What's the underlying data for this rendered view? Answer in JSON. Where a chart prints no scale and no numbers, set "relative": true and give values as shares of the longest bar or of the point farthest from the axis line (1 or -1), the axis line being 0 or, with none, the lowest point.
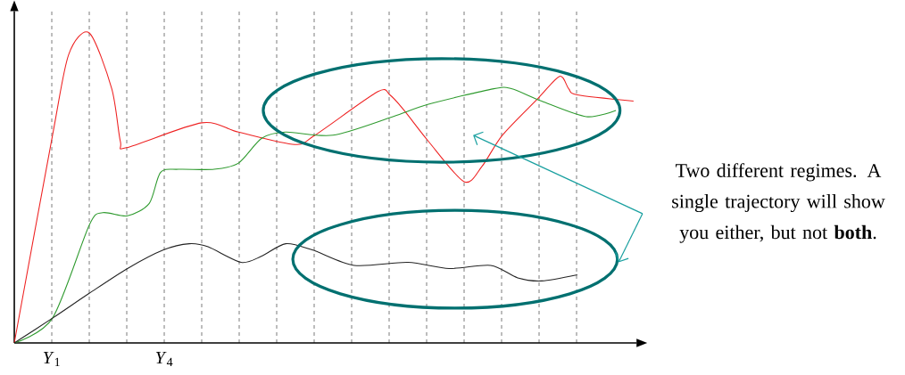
{
  "chart_data": {
    "type": "line",
    "relative": true,
    "xlim": [
      0,
      16.6
    ],
    "xticks": [
      {
        "value": 1,
        "label": "*Y*$_{1}$"
      },
      {
        "value": 2,
        "label": null
      },
      {
        "value": 3,
        "label": null
      },
      {
        "value": 4,
        "label": "*Y*$_{4}$"
      },
      {
        "value": 5,
        "label": null
      },
      {
        "value": 6,
        "label": null
      },
      {
        "value": 7,
        "label": null
      },
      {
        "value": 8,
        "label": null
      },
      {
        "value": 9,
        "label": null
      },
      {
        "value": 10,
        "label": null
      },
      {
        "value": 11,
        "label": null
      },
      {
        "value": 12,
        "label": null
      },
      {
        "value": 13,
        "label": null
      },
      {
        "value": 14,
        "label": null
      },
      {
        "value": 15,
        "label": null
      }
    ],
    "grid": "x",
    "series": [
      {
        "color": "#ee2222",
        "x": [
          0,
          1.02,
          1.45,
          2.0,
          2.6,
          2.83,
          3.0,
          5.0,
          5.98,
          7.48,
          8.02,
          9.69,
          10.02,
          10.4,
          11.05,
          12.0,
          12.48,
          13.02,
          13.98,
          14.55,
          14.79,
          15.02,
          16.52
        ],
        "values": [
          0,
          0.67,
          0.93,
          1.0,
          0.82,
          0.65,
          0.63,
          0.71,
          0.68,
          0.64,
          0.67,
          0.81,
          0.8,
          0.75,
          0.65,
          0.52,
          0.57,
          0.67,
          0.79,
          0.86,
          0.82,
          0.8,
          0.78
        ]
      },
      {
        "color": "#2e9a2e",
        "x": [
          0,
          1.02,
          2.0,
          2.36,
          3.02,
          3.6,
          3.9,
          4.38,
          5.33,
          5.98,
          6.6,
          7.24,
          8.5,
          10.1,
          11.05,
          12.79,
          13.26,
          14.07,
          15.26,
          16.05
        ],
        "values": [
          0,
          0.08,
          0.38,
          0.42,
          0.41,
          0.45,
          0.55,
          0.56,
          0.56,
          0.58,
          0.66,
          0.68,
          0.67,
          0.73,
          0.77,
          0.82,
          0.82,
          0.78,
          0.73,
          0.75
        ]
      },
      {
        "color": "#222222",
        "x": [
          0,
          1.02,
          2.0,
          3.02,
          3.98,
          4.67,
          5.17,
          6.05,
          6.6,
          7.24,
          7.95,
          9.07,
          10.5,
          11.6,
          12.71,
          13.43,
          14.07,
          15.02
        ],
        "values": [
          0,
          0.08,
          0.16,
          0.24,
          0.3,
          0.32,
          0.31,
          0.26,
          0.28,
          0.32,
          0.3,
          0.25,
          0.26,
          0.24,
          0.25,
          0.21,
          0.2,
          0.22
        ]
      }
    ],
    "annotations": [
      "Two different regimes. A single trajectory will show you either, but not **both**."
    ]
  }
}
